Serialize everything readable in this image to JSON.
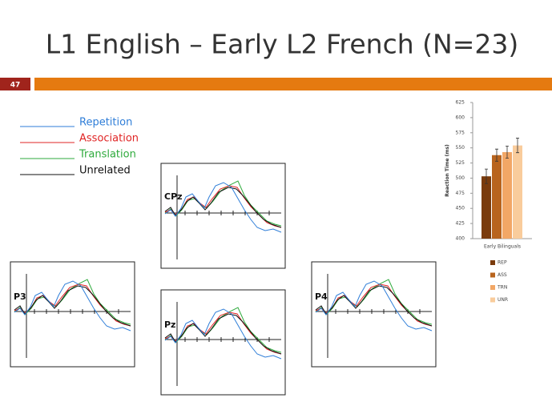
{
  "slide": {
    "title": "L1 English – Early L2 French (N=23)",
    "number": "47"
  },
  "legend": [
    {
      "label": "Repetition",
      "color": "#2f7ed8"
    },
    {
      "label": "Association",
      "color": "#e02424"
    },
    {
      "label": "Translation",
      "color": "#2eaa3c"
    },
    {
      "label": "Unrelated",
      "color": "#111111"
    }
  ],
  "erp_panels": [
    {
      "label": "CPz"
    },
    {
      "label": "P3"
    },
    {
      "label": "Pz"
    },
    {
      "label": "P4"
    }
  ],
  "chart_data": {
    "type": "bar",
    "y_label": "Reaction Time (ms)",
    "categories": [
      "Early Bilinguals"
    ],
    "series": [
      {
        "name": "REP",
        "color": "#7a3b0c",
        "values": [
          503
        ],
        "errors": [
          12
        ]
      },
      {
        "name": "ASS",
        "color": "#b8641e",
        "values": [
          538
        ],
        "errors": [
          10
        ]
      },
      {
        "name": "TRN",
        "color": "#f2a766",
        "values": [
          543
        ],
        "errors": [
          10
        ]
      },
      {
        "name": "UNR",
        "color": "#f9cc9c",
        "values": [
          554
        ],
        "errors": [
          12
        ]
      }
    ],
    "ylim": [
      400,
      625
    ],
    "yticks": [
      400,
      425,
      450,
      475,
      500,
      525,
      550,
      575,
      600,
      625
    ],
    "legend_position": "bottom"
  }
}
